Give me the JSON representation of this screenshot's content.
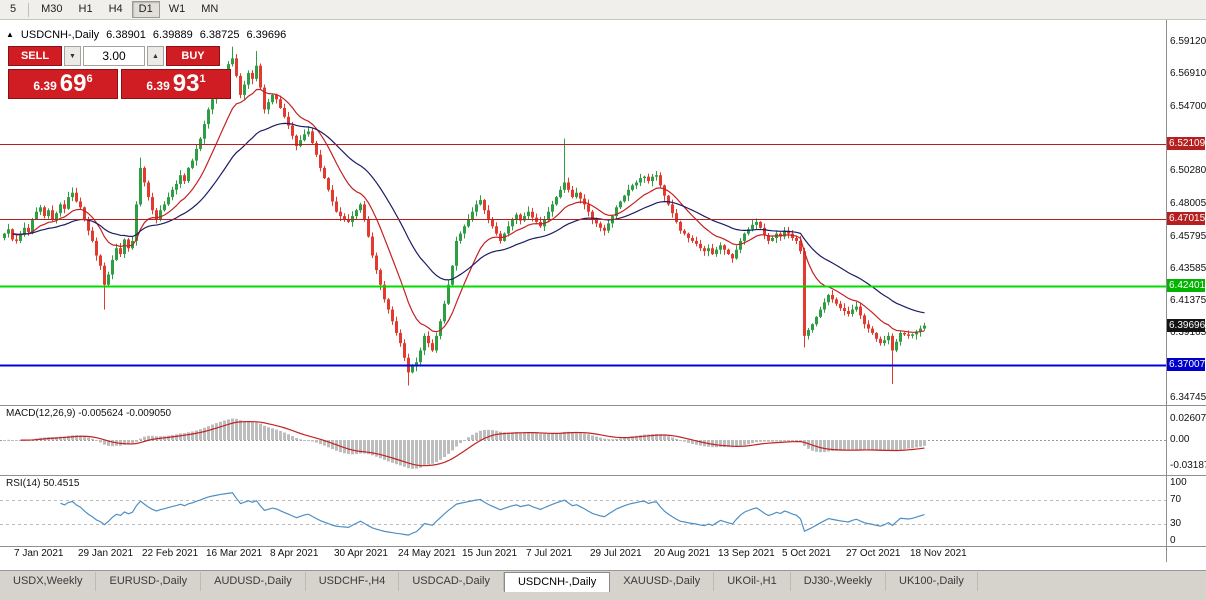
{
  "toolbar": {
    "timeframes": [
      "5",
      "M30",
      "H1",
      "H4",
      "D1",
      "W1",
      "MN"
    ],
    "active": "D1"
  },
  "icons": {
    "collapse_triangle": "▲",
    "dropdown_arrow": "▼",
    "spinner_up": "▲"
  },
  "chart_header": {
    "symbol": "USDCNH-,Daily",
    "open": "6.38901",
    "high": "6.39889",
    "low": "6.38725",
    "close": "6.39696"
  },
  "one_click_panel": {
    "sell_label": "SELL",
    "buy_label": "BUY",
    "volume": "3.00",
    "sell_price": {
      "small": "6.39",
      "big": "69",
      "sup": "6"
    },
    "buy_price": {
      "small": "6.39",
      "big": "93",
      "sup": "1"
    },
    "button_color": "#cf1d23"
  },
  "price_axis": {
    "labels": [
      6.5912,
      6.5691,
      6.547,
      6.5028,
      6.48005,
      6.45795,
      6.43585,
      6.41375,
      6.39165,
      6.34745
    ],
    "badges": [
      {
        "text": "6.52109",
        "price": 6.52109,
        "color": "#b51f1f"
      },
      {
        "text": "6.47015",
        "price": 6.47015,
        "color": "#b51f1f"
      },
      {
        "text": "6.42401",
        "price": 6.42401,
        "color": "#00b400"
      },
      {
        "text": "6.39696",
        "price": 6.39696,
        "color": "#141414"
      },
      {
        "text": "6.37007",
        "price": 6.37007,
        "color": "#0000cd"
      }
    ]
  },
  "macd_panel": {
    "label": "MACD(12,26,9) -0.005624 -0.009050",
    "axis_labels": [
      {
        "text": "0.02607",
        "value": 0.02607
      },
      {
        "text": "0.00",
        "value": 0
      },
      {
        "text": "-0.03187",
        "value": -0.03187
      }
    ]
  },
  "rsi_panel": {
    "label": "RSI(14) 50.4515",
    "levels": [
      70,
      30
    ],
    "axis_labels": [
      {
        "text": "100",
        "value": 100
      },
      {
        "text": "70",
        "value": 70
      },
      {
        "text": "30",
        "value": 30
      },
      {
        "text": "0",
        "value": 0
      }
    ]
  },
  "date_axis": {
    "labels": [
      "7 Jan 2021",
      "29 Jan 2021",
      "22 Feb 2021",
      "16 Mar 2021",
      "8 Apr 2021",
      "30 Apr 2021",
      "24 May 2021",
      "15 Jun 2021",
      "7 Jul 2021",
      "29 Jul 2021",
      "20 Aug 2021",
      "13 Sep 2021",
      "5 Oct 2021",
      "27 Oct 2021",
      "18 Nov 2021"
    ],
    "first_index": 3,
    "step": 16
  },
  "tabs": {
    "items": [
      "USDX,Weekly",
      "EURUSD-,Daily",
      "AUDUSD-,Daily",
      "USDCHF-,H4",
      "USDCAD-,Daily",
      "USDCNH-,Daily",
      "XAUUSD-,Daily",
      "UKOil-,H1",
      "DJ30-,Weekly",
      "UK100-,Daily"
    ],
    "active": "USDCNH-,Daily"
  },
  "chart_data": {
    "type": "candlestick",
    "title": "USDCNH-,Daily",
    "current_price": 6.39696,
    "ohlc_display": {
      "open": 6.38901,
      "high": 6.39889,
      "low": 6.38725,
      "close": 6.39696
    },
    "y_axis": {
      "price_top": 6.5912,
      "price_bottom": 6.34745
    },
    "up_color": "#2e9e44",
    "down_color": "#e23a2e",
    "ma_fast_color": "#c22222",
    "ma_slow_color": "#1c1c66",
    "hlines": [
      {
        "price": 6.52109,
        "color": "#b51f1f",
        "width": 1
      },
      {
        "price": 6.47015,
        "color": "#b51f1f",
        "width": 1
      },
      {
        "price": 6.42401,
        "color": "#00dc00",
        "width": 2
      },
      {
        "price": 6.37007,
        "color": "#0000e0",
        "width": 2
      }
    ],
    "indicators": {
      "ma_fast_period": 13,
      "ma_slow_period": 34,
      "macd": {
        "fast": 12,
        "slow": 26,
        "signal": 9,
        "value": -0.005624,
        "signal_value": -0.00905
      },
      "rsi": {
        "period": 14,
        "value": 50.4515
      }
    },
    "closes": [
      6.46,
      6.463,
      6.456,
      6.455,
      6.459,
      6.464,
      6.461,
      6.47,
      6.475,
      6.478,
      6.472,
      6.476,
      6.47,
      6.474,
      6.48,
      6.477,
      6.485,
      6.488,
      6.482,
      6.478,
      6.47,
      6.462,
      6.455,
      6.445,
      6.438,
      6.425,
      6.432,
      6.442,
      6.45,
      6.446,
      6.456,
      6.45,
      6.455,
      6.48,
      6.505,
      6.495,
      6.485,
      6.476,
      6.47,
      6.476,
      6.48,
      6.485,
      6.49,
      6.494,
      6.5,
      6.496,
      6.505,
      6.51,
      6.518,
      6.525,
      6.535,
      6.545,
      6.552,
      6.558,
      6.565,
      6.57,
      6.576,
      6.58,
      6.568,
      6.555,
      6.562,
      6.57,
      6.566,
      6.575,
      6.56,
      6.545,
      6.55,
      6.555,
      6.552,
      6.546,
      6.54,
      6.534,
      6.527,
      6.52,
      6.524,
      6.528,
      6.53,
      6.522,
      6.514,
      6.505,
      6.498,
      6.49,
      6.482,
      6.475,
      6.472,
      6.47,
      6.468,
      6.472,
      6.476,
      6.48,
      6.47,
      6.458,
      6.445,
      6.435,
      6.425,
      6.415,
      6.408,
      6.4,
      6.392,
      6.385,
      6.375,
      6.365,
      6.369,
      6.372,
      6.38,
      6.39,
      6.385,
      6.38,
      6.39,
      6.4,
      6.412,
      6.425,
      6.438,
      6.455,
      6.46,
      6.465,
      6.47,
      6.475,
      6.48,
      6.483,
      6.476,
      6.47,
      6.465,
      6.46,
      6.455,
      6.46,
      6.465,
      6.47,
      6.473,
      6.469,
      6.472,
      6.475,
      6.471,
      6.468,
      6.465,
      6.47,
      6.475,
      6.48,
      6.485,
      6.49,
      6.495,
      6.49,
      6.485,
      6.488,
      6.484,
      6.48,
      6.475,
      6.47,
      6.467,
      6.464,
      6.462,
      6.467,
      6.472,
      6.478,
      6.482,
      6.486,
      6.49,
      6.493,
      6.495,
      6.498,
      6.499,
      6.496,
      6.499,
      6.5,
      6.493,
      6.486,
      6.48,
      6.474,
      6.468,
      6.462,
      6.46,
      6.457,
      6.455,
      6.453,
      6.45,
      6.448,
      6.45,
      6.446,
      6.449,
      6.452,
      6.449,
      6.446,
      6.443,
      6.449,
      6.455,
      6.46,
      6.463,
      6.466,
      6.468,
      6.464,
      6.459,
      6.455,
      6.457,
      6.46,
      6.458,
      6.462,
      6.46,
      6.457,
      6.455,
      6.448,
      6.39,
      6.394,
      6.398,
      6.403,
      6.408,
      6.413,
      6.418,
      6.415,
      6.412,
      6.409,
      6.407,
      6.405,
      6.408,
      6.41,
      6.404,
      6.398,
      6.395,
      6.392,
      6.388,
      6.385,
      6.387,
      6.39,
      6.38,
      6.386,
      6.392,
      6.391,
      6.39,
      6.391,
      6.393,
      6.395,
      6.397
    ],
    "wick_overrides": {
      "25": {
        "low": 6.408
      },
      "34": {
        "high": 6.512
      },
      "57": {
        "high": 6.588
      },
      "63": {
        "high": 6.585
      },
      "101": {
        "low": 6.356
      },
      "140": {
        "high": 6.525
      },
      "200": {
        "low": 6.382
      },
      "222": {
        "low": 6.357
      }
    }
  }
}
